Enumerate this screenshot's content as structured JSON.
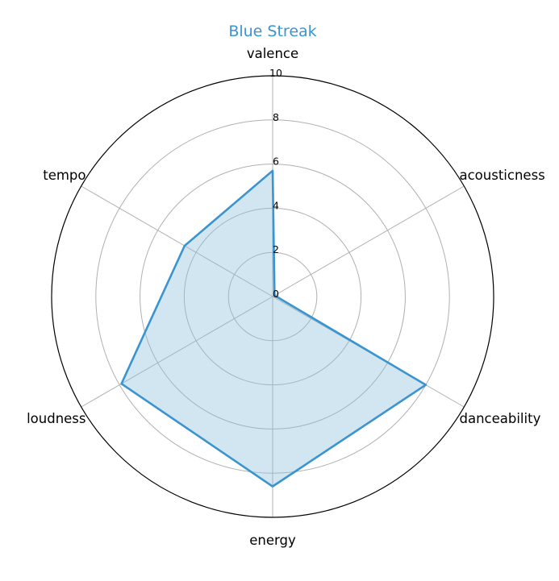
{
  "chart_data": {
    "type": "radar",
    "title": "Blue Streak",
    "axes": [
      "valence",
      "acousticness",
      "danceability",
      "energy",
      "loudness",
      "tempo"
    ],
    "series": [
      {
        "values": [
          5.7,
          0.1,
          8.0,
          8.6,
          7.9,
          4.6
        ]
      }
    ],
    "rlim": [
      0,
      10
    ],
    "rticks": [
      "0",
      "2",
      "4",
      "6",
      "8",
      "10"
    ],
    "grid": true,
    "colors": {
      "series": "#3a94cf",
      "fill": "#8fc0de",
      "title": "#3a94cf"
    }
  }
}
